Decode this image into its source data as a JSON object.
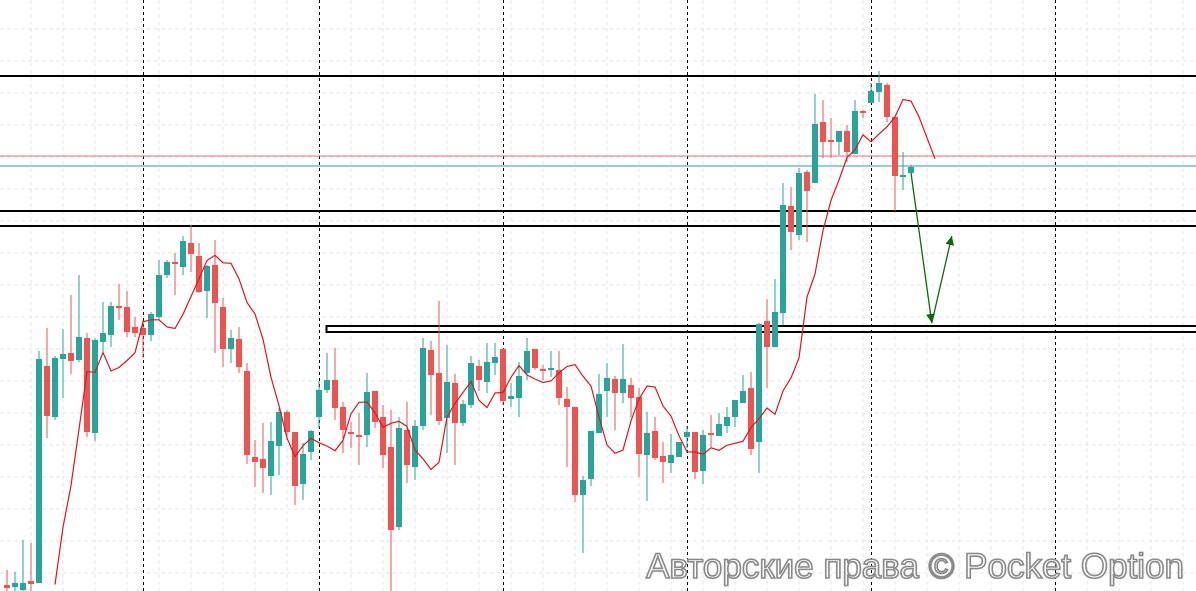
{
  "watermark": "Авторские права © Pocket Option",
  "chart_data": {
    "type": "candlestick",
    "title": "",
    "xlabel": "",
    "ylabel": "",
    "ylim": [
      9,
      600
    ],
    "grid": true,
    "colors": {
      "up": "#26a69a",
      "down": "#ef5350",
      "moving_average": "#e0141e",
      "support_resistance": "#000000",
      "red_level": "#ef7070",
      "current_price_line": "#26a69a",
      "forecast_arrow": "#0b6b0b",
      "grid": "#e6e6e6",
      "session_separator": "#000000"
    },
    "candles_ohlc": [
      [
        15,
        30,
        9,
        12
      ],
      [
        13,
        28,
        9,
        17
      ],
      [
        10,
        60,
        9,
        17
      ],
      [
        19,
        57,
        9,
        16
      ],
      [
        17,
        249,
        17,
        241
      ],
      [
        234,
        272,
        162,
        184
      ],
      [
        183,
        244,
        180,
        242
      ],
      [
        241,
        271,
        202,
        246
      ],
      [
        247,
        305,
        226,
        239
      ],
      [
        240,
        325,
        238,
        263
      ],
      [
        262,
        267,
        163,
        168
      ],
      [
        167,
        262,
        159,
        260
      ],
      [
        258,
        298,
        248,
        267
      ],
      [
        265,
        298,
        253,
        294
      ],
      [
        294,
        316,
        280,
        292
      ],
      [
        293,
        309,
        263,
        268
      ],
      [
        273,
        283,
        263,
        267
      ],
      [
        272,
        280,
        242,
        265
      ],
      [
        265,
        288,
        259,
        286
      ],
      [
        283,
        340,
        280,
        325
      ],
      [
        325,
        340,
        322,
        338
      ],
      [
        338,
        347,
        305,
        336
      ],
      [
        333,
        364,
        325,
        359
      ],
      [
        357,
        375,
        328,
        346
      ],
      [
        344,
        357,
        307,
        308
      ],
      [
        309,
        335,
        282,
        334
      ],
      [
        335,
        360,
        247,
        297
      ],
      [
        293,
        302,
        233,
        251
      ],
      [
        251,
        270,
        237,
        262
      ],
      [
        261,
        273,
        227,
        233
      ],
      [
        229,
        237,
        136,
        145
      ],
      [
        143,
        160,
        113,
        138
      ],
      [
        141,
        177,
        107,
        132
      ],
      [
        124,
        178,
        105,
        159
      ],
      [
        154,
        192,
        125,
        188
      ],
      [
        188,
        190,
        160,
        168
      ],
      [
        168,
        168,
        95,
        114
      ],
      [
        116,
        157,
        100,
        146
      ],
      [
        148,
        170,
        140,
        169
      ],
      [
        183,
        219,
        172,
        210
      ],
      [
        210,
        247,
        207,
        220
      ],
      [
        220,
        252,
        180,
        192
      ],
      [
        193,
        198,
        147,
        170
      ],
      [
        168,
        178,
        152,
        166
      ],
      [
        165,
        187,
        135,
        163
      ],
      [
        165,
        227,
        153,
        208
      ],
      [
        209,
        209,
        172,
        178
      ],
      [
        183,
        195,
        132,
        145
      ],
      [
        153,
        190,
        9,
        70
      ],
      [
        73,
        183,
        70,
        172
      ],
      [
        170,
        198,
        117,
        135
      ],
      [
        133,
        180,
        120,
        174
      ],
      [
        174,
        262,
        170,
        252
      ],
      [
        250,
        259,
        185,
        225
      ],
      [
        227,
        299,
        175,
        179
      ],
      [
        182,
        255,
        147,
        218
      ],
      [
        217,
        226,
        135,
        177
      ],
      [
        177,
        200,
        174,
        196
      ],
      [
        195,
        244,
        192,
        237
      ],
      [
        234,
        240,
        209,
        220
      ],
      [
        218,
        257,
        207,
        238
      ],
      [
        237,
        257,
        225,
        243
      ],
      [
        251,
        252,
        195,
        199
      ],
      [
        201,
        217,
        193,
        204
      ],
      [
        202,
        238,
        183,
        224
      ],
      [
        227,
        262,
        220,
        249
      ],
      [
        251,
        251,
        230,
        232
      ],
      [
        231,
        235,
        220,
        229
      ],
      [
        230,
        249,
        223,
        232
      ],
      [
        230,
        249,
        195,
        202
      ],
      [
        201,
        213,
        133,
        193
      ],
      [
        193,
        193,
        98,
        105
      ],
      [
        105,
        124,
        47,
        120
      ],
      [
        121,
        169,
        114,
        169
      ],
      [
        167,
        226,
        167,
        206
      ],
      [
        209,
        237,
        183,
        222
      ],
      [
        221,
        224,
        170,
        207
      ],
      [
        207,
        256,
        197,
        221
      ],
      [
        215,
        222,
        183,
        202
      ],
      [
        203,
        212,
        123,
        146
      ],
      [
        145,
        188,
        99,
        167
      ],
      [
        169,
        183,
        140,
        142
      ],
      [
        144,
        158,
        117,
        138
      ],
      [
        137,
        166,
        127,
        145
      ],
      [
        143,
        158,
        143,
        158
      ],
      [
        163,
        174,
        152,
        168
      ],
      [
        168,
        168,
        121,
        128
      ],
      [
        129,
        170,
        116,
        165
      ],
      [
        167,
        185,
        153,
        166
      ],
      [
        164,
        187,
        164,
        176
      ],
      [
        174,
        193,
        167,
        183
      ],
      [
        183,
        200,
        173,
        200
      ],
      [
        197,
        225,
        197,
        209
      ],
      [
        212,
        228,
        145,
        151
      ],
      [
        158,
        277,
        127,
        276
      ],
      [
        279,
        301,
        212,
        253
      ],
      [
        253,
        321,
        253,
        288
      ],
      [
        287,
        417,
        275,
        395
      ],
      [
        394,
        413,
        350,
        368
      ],
      [
        365,
        432,
        360,
        427
      ],
      [
        428,
        430,
        358,
        409
      ],
      [
        417,
        506,
        417,
        476
      ],
      [
        478,
        500,
        442,
        458
      ],
      [
        460,
        482,
        442,
        458
      ],
      [
        458,
        469,
        445,
        469
      ],
      [
        469,
        475,
        438,
        448
      ],
      [
        446,
        500,
        446,
        489
      ],
      [
        489,
        490,
        482,
        487
      ],
      [
        497,
        517,
        497,
        509
      ],
      [
        508,
        529,
        498,
        517
      ],
      [
        515,
        517,
        478,
        483
      ],
      [
        483,
        483,
        389,
        424
      ],
      [
        423,
        448,
        410,
        425
      ],
      [
        427,
        435,
        427,
        433
      ]
    ],
    "horizontal_levels": [
      524,
      389,
      374
    ],
    "zone_rectangle": {
      "from_candle": 40,
      "top": 274,
      "bottom": 268
    },
    "red_level": 444,
    "current_price": 434,
    "session_separators_at_candle": [
      17,
      39,
      62,
      85,
      108,
      131
    ],
    "forecast_arrow_path": [
      [
        113,
        427
      ],
      [
        115.6,
        277
      ],
      [
        118.1,
        364
      ]
    ]
  }
}
